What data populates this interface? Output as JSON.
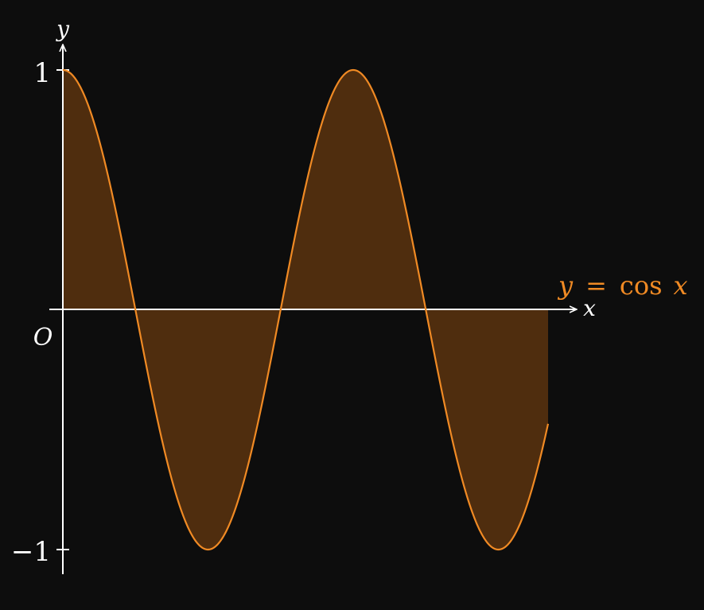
{
  "chart_data": {
    "type": "line",
    "function": "cos",
    "x_range": [
      0,
      10.5
    ],
    "ylim": [
      -1,
      1
    ],
    "yticks": [
      1,
      -1
    ],
    "ytick_labels": [
      "1",
      "−1"
    ],
    "xlabel": "x",
    "ylabel": "y",
    "origin_label": "O",
    "series": [
      {
        "name": "y = cos x",
        "label_parts": {
          "y": "y",
          "eq": "=",
          "fn": "cos",
          "x": "x"
        },
        "color": "#f08a24",
        "fill": "#4f2d0e",
        "samples": 600
      }
    ],
    "grid": false,
    "background": "#0d0d0d",
    "axis_color": "#ffffff"
  }
}
